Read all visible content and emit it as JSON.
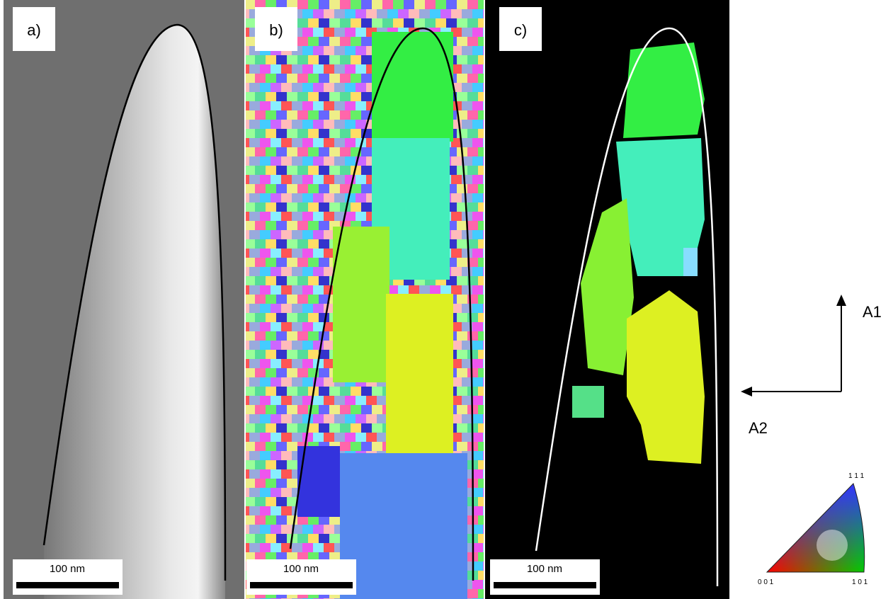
{
  "panels": [
    {
      "label": "a)",
      "scale_bar": "100 nm"
    },
    {
      "label": "b)",
      "scale_bar": "100 nm"
    },
    {
      "label": "c)",
      "scale_bar": "100 nm"
    }
  ],
  "axes": {
    "vertical": "A1",
    "horizontal": "A2"
  },
  "ipf_key": {
    "top": "1 1 1",
    "left": "0 0 1",
    "right": "1 0 1"
  }
}
